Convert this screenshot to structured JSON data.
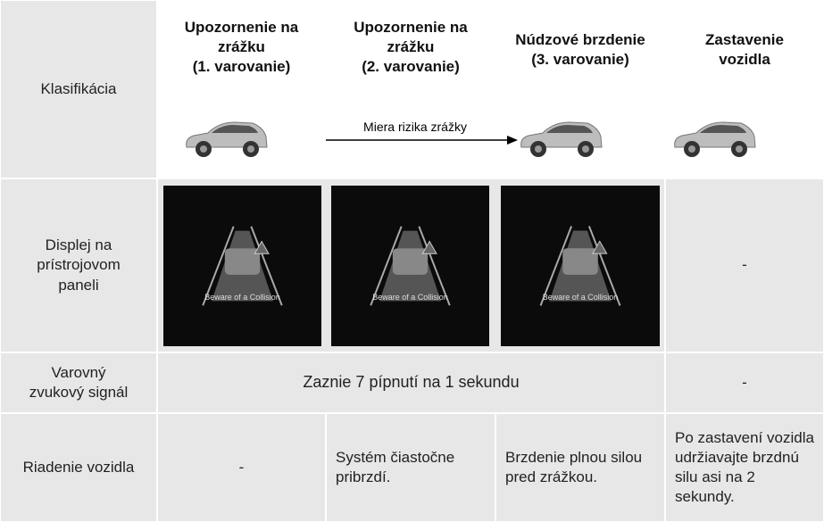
{
  "header": {
    "row_label": "Klasifikácia",
    "columns": [
      "Upozornenie na\nzrážku\n(1. varovanie)",
      "Upozornenie na\nzrážku\n(2. varovanie)",
      "Núdzové brzdenie\n(3. varovanie)",
      "Zastavenie\nvozidla"
    ],
    "arrow_label": "Miera rizika zrážky"
  },
  "rows": [
    {
      "label": "Displej na\nprístrojovom\npaneli",
      "screens": [
        "Beware of a Collision",
        "Beware of a Collision",
        "Beware of a Collision"
      ],
      "last": "-"
    },
    {
      "label": "Varovný\nzvukový signál",
      "merged": "Zaznie 7 pípnutí na 1 sekundu",
      "last": "-"
    },
    {
      "label": "Riadenie vozidla",
      "cells": [
        "-",
        "Systém čiastočne pribrzdí.",
        "Brzdenie plnou silou pred zrážkou.",
        "Po zastavení vozidla udržiavajte brzdnú silu asi na 2 sekundy."
      ]
    }
  ]
}
